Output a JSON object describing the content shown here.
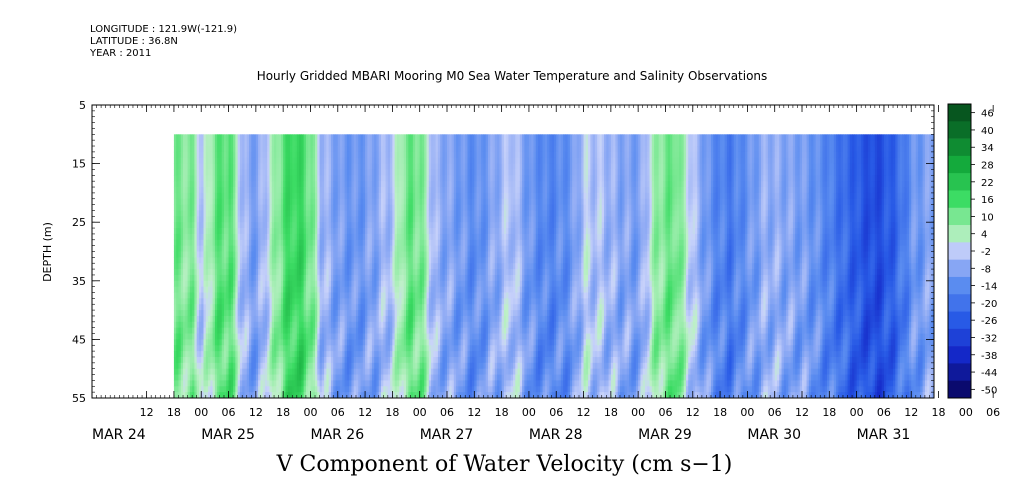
{
  "header": {
    "longitude": "LONGITUDE : 121.9W(-121.9)",
    "latitude": "LATITUDE : 36.8N",
    "year": "YEAR : 2011",
    "title": "Hourly Gridded MBARI Mooring M0 Sea Water Temperature and Salinity Observations"
  },
  "caption": "V Component of Water Velocity (cm s−1)",
  "chart_data": {
    "type": "heatmap",
    "title": "Hourly Gridded MBARI Mooring M0 Sea Water Temperature and Salinity Observations",
    "xlabel": "",
    "ylabel": "DEPTH (m)",
    "colorbar_label": "V Component of Water Velocity (cm s−1)",
    "x_range_hours": [
      0,
      185
    ],
    "y_range": [
      5,
      55
    ],
    "y_inverted": true,
    "y_ticks": [
      5,
      15,
      25,
      35,
      45,
      55
    ],
    "x_hour_ticks": [
      "12",
      "18",
      "00",
      "06",
      "12",
      "18",
      "00",
      "06",
      "12",
      "18",
      "00",
      "06",
      "12",
      "18",
      "00",
      "06",
      "12",
      "18",
      "00",
      "06",
      "12",
      "18",
      "00",
      "06",
      "12",
      "18",
      "00",
      "06",
      "12",
      "18",
      "00",
      "06"
    ],
    "x_day_labels": [
      {
        "label": "MAR 24",
        "hour": 0
      },
      {
        "label": "MAR 25",
        "hour": 24
      },
      {
        "label": "MAR 26",
        "hour": 48
      },
      {
        "label": "MAR 27",
        "hour": 72
      },
      {
        "label": "MAR 28",
        "hour": 96
      },
      {
        "label": "MAR 29",
        "hour": 120
      },
      {
        "label": "MAR 30",
        "hour": 144
      },
      {
        "label": "MAR 31",
        "hour": 168
      }
    ],
    "data_depth_range": [
      10,
      55
    ],
    "data_start_hour": 18,
    "colorbar_levels": [
      "46",
      "40",
      "34",
      "28",
      "22",
      "16",
      "10",
      "4",
      "-2",
      "-8",
      "-14",
      "-20",
      "-26",
      "-32",
      "-38",
      "-44",
      "-50"
    ],
    "colorbar_min": -50,
    "colorbar_max": 50,
    "field_profile": [
      {
        "hour": 18,
        "v": 10
      },
      {
        "hour": 22,
        "v": 8
      },
      {
        "hour": 24,
        "v": -4
      },
      {
        "hour": 27,
        "v": 12
      },
      {
        "hour": 30,
        "v": 14
      },
      {
        "hour": 33,
        "v": -6
      },
      {
        "hour": 36,
        "v": -10
      },
      {
        "hour": 40,
        "v": 6
      },
      {
        "hour": 42,
        "v": 14
      },
      {
        "hour": 44,
        "v": 18
      },
      {
        "hour": 46,
        "v": 16
      },
      {
        "hour": 48,
        "v": 10
      },
      {
        "hour": 50,
        "v": -4
      },
      {
        "hour": 54,
        "v": -10
      },
      {
        "hour": 58,
        "v": -12
      },
      {
        "hour": 62,
        "v": -8
      },
      {
        "hour": 66,
        "v": -2
      },
      {
        "hour": 68,
        "v": 8
      },
      {
        "hour": 70,
        "v": 12
      },
      {
        "hour": 72,
        "v": 10
      },
      {
        "hour": 75,
        "v": -6
      },
      {
        "hour": 80,
        "v": -10
      },
      {
        "hour": 84,
        "v": -14
      },
      {
        "hour": 88,
        "v": -8
      },
      {
        "hour": 92,
        "v": -2
      },
      {
        "hour": 96,
        "v": -12
      },
      {
        "hour": 100,
        "v": -16
      },
      {
        "hour": 105,
        "v": -12
      },
      {
        "hour": 108,
        "v": -2
      },
      {
        "hour": 112,
        "v": -4
      },
      {
        "hour": 116,
        "v": -8
      },
      {
        "hour": 120,
        "v": -10
      },
      {
        "hour": 124,
        "v": 8
      },
      {
        "hour": 128,
        "v": 12
      },
      {
        "hour": 132,
        "v": -4
      },
      {
        "hour": 136,
        "v": -14
      },
      {
        "hour": 140,
        "v": -18
      },
      {
        "hour": 144,
        "v": -12
      },
      {
        "hour": 148,
        "v": -6
      },
      {
        "hour": 152,
        "v": -8
      },
      {
        "hour": 156,
        "v": -10
      },
      {
        "hour": 160,
        "v": -14
      },
      {
        "hour": 164,
        "v": -20
      },
      {
        "hour": 168,
        "v": -26
      },
      {
        "hour": 172,
        "v": -30
      },
      {
        "hour": 176,
        "v": -24
      },
      {
        "hour": 180,
        "v": -12
      },
      {
        "hour": 185,
        "v": -8
      }
    ]
  }
}
